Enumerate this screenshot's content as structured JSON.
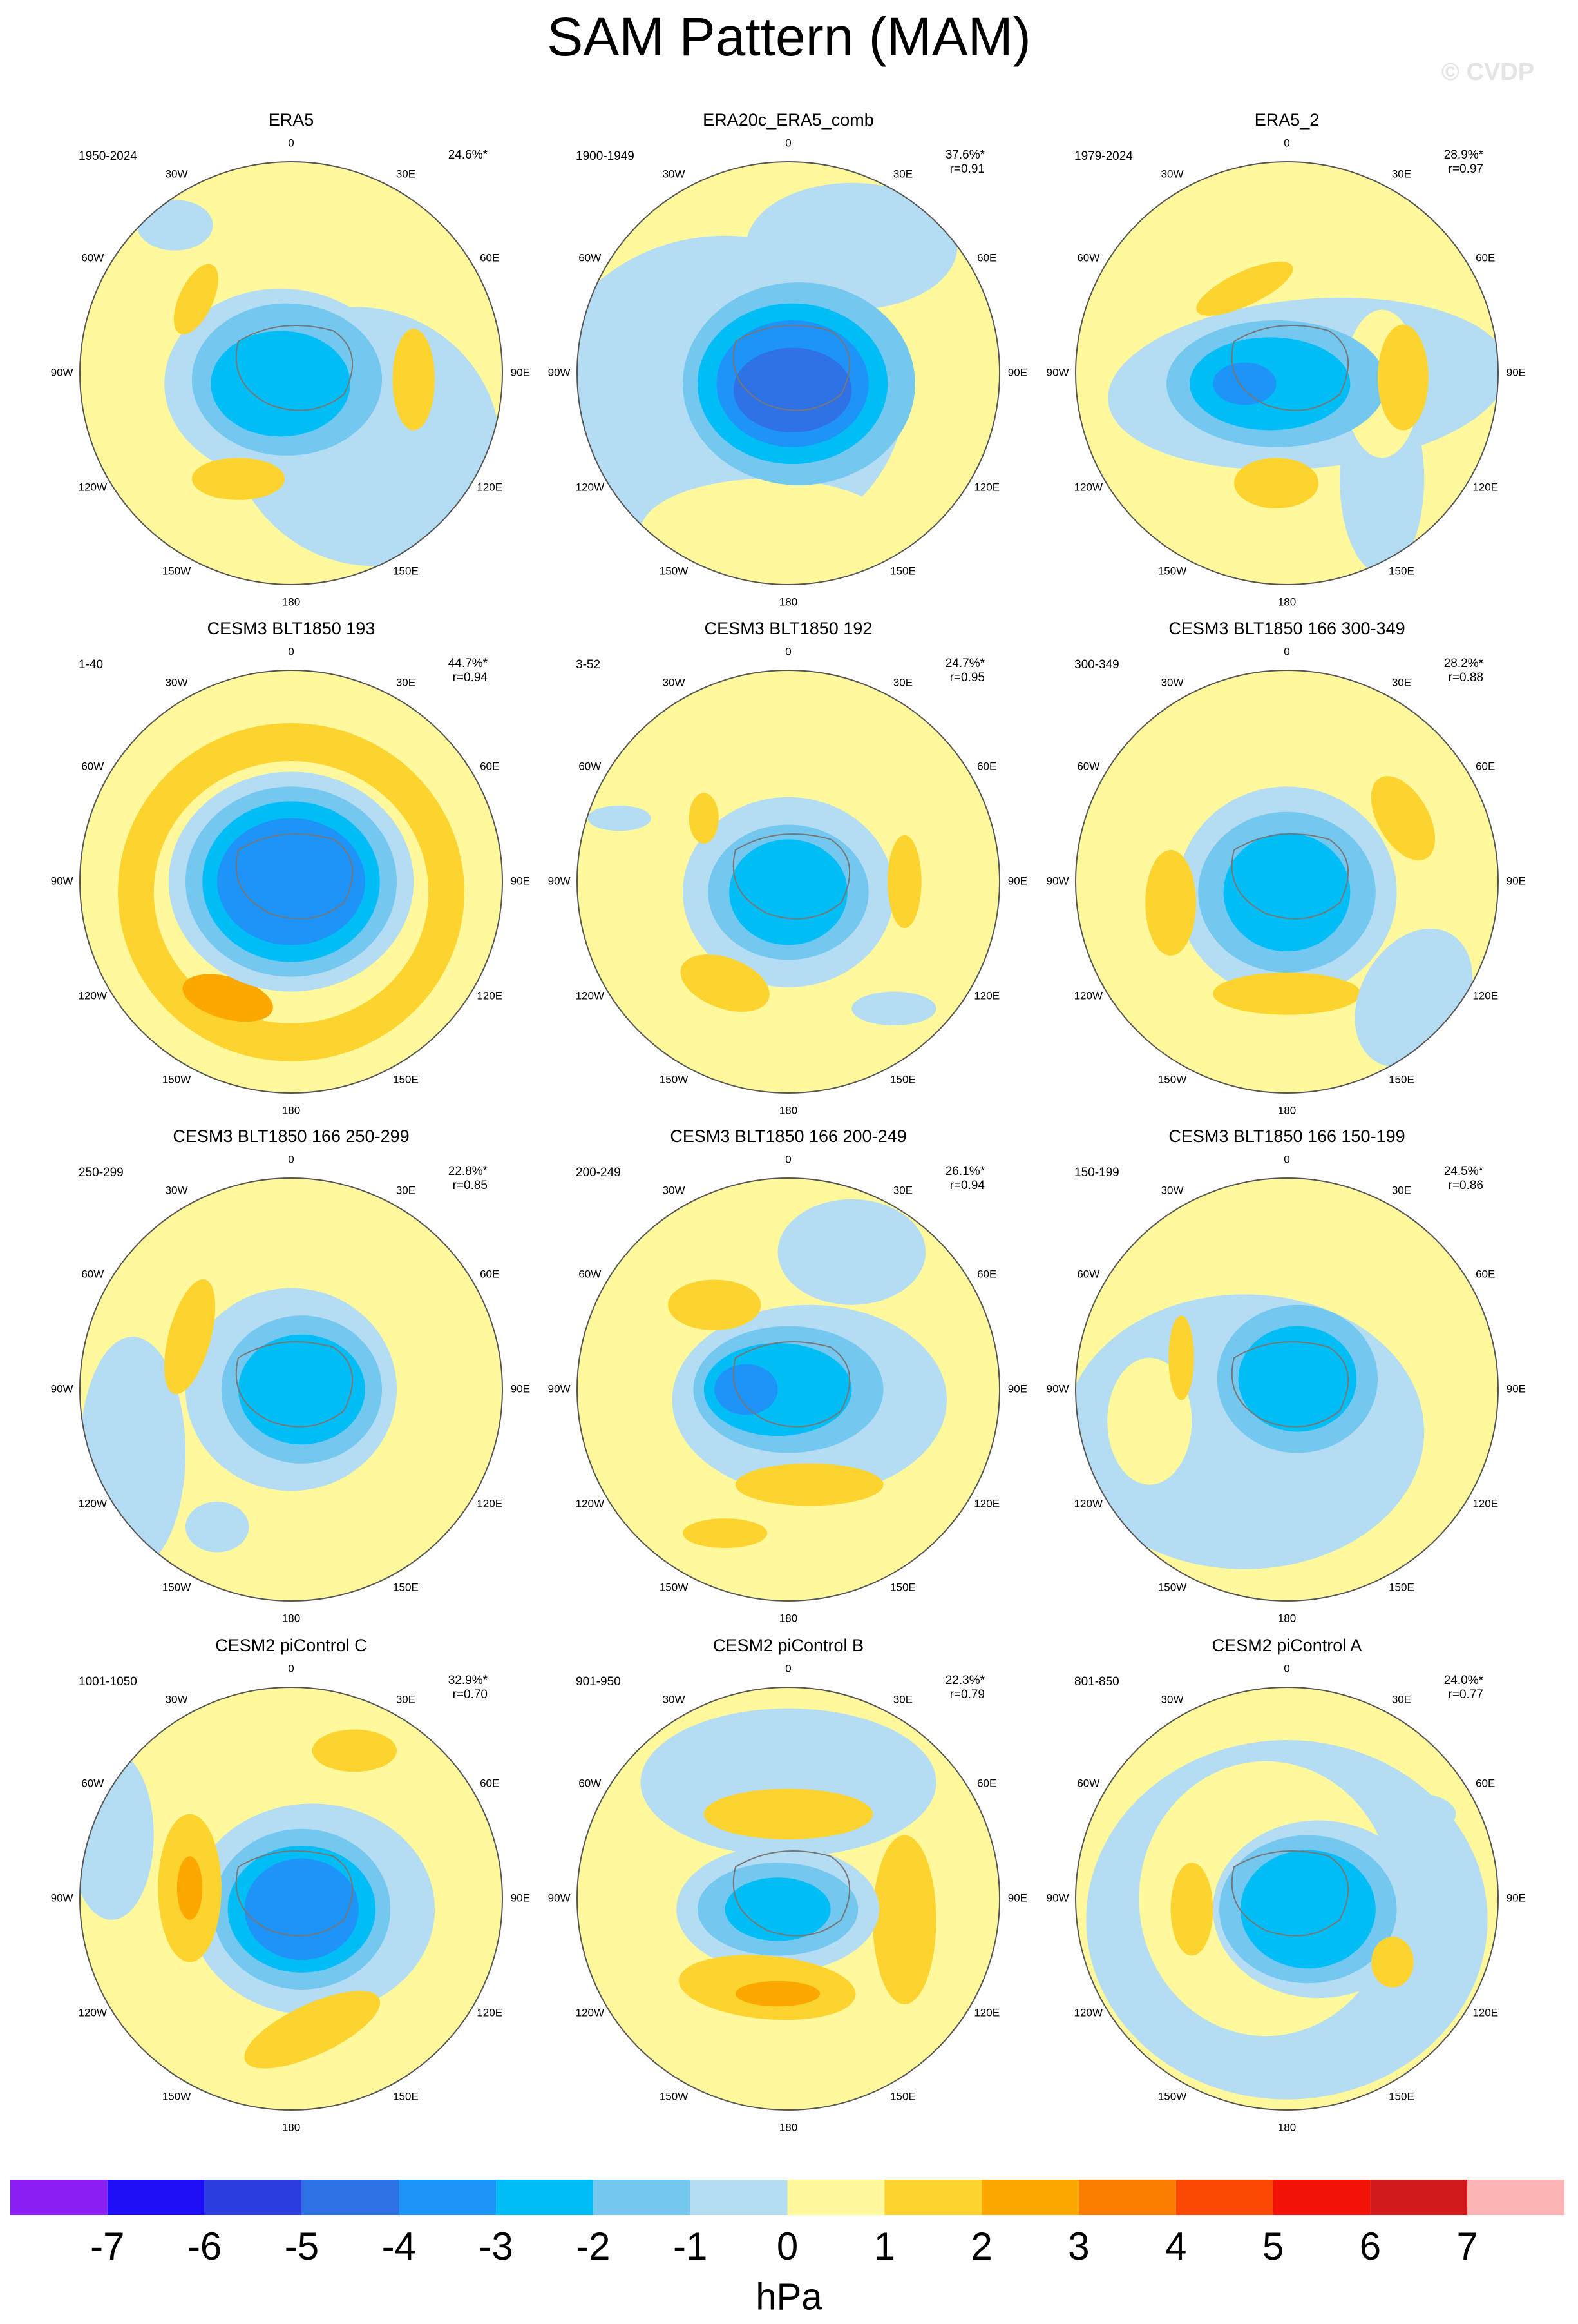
{
  "title": "SAM Pattern (MAM)",
  "watermark": "© CVDP",
  "longitude_labels": [
    "0",
    "30E",
    "60E",
    "90E",
    "120E",
    "150E",
    "180",
    "150W",
    "120W",
    "90W",
    "60W",
    "30W"
  ],
  "panels": [
    {
      "title": "ERA5",
      "period": "1950-2024",
      "variance": "24.6%*"
    },
    {
      "title": "ERA20c_ERA5_comb",
      "period": "1900-1949",
      "variance": "37.6%*",
      "correlation": "r=0.91"
    },
    {
      "title": "ERA5_2",
      "period": "1979-2024",
      "variance": "28.9%*",
      "correlation": "r=0.97"
    },
    {
      "title": "CESM3 BLT1850 193",
      "period": "1-40",
      "variance": "44.7%*",
      "correlation": "r=0.94"
    },
    {
      "title": "CESM3 BLT1850 192",
      "period": "3-52",
      "variance": "24.7%*",
      "correlation": "r=0.95"
    },
    {
      "title": "CESM3 BLT1850 166 300-349",
      "period": "300-349",
      "variance": "28.2%*",
      "correlation": "r=0.88"
    },
    {
      "title": "CESM3 BLT1850 166 250-299",
      "period": "250-299",
      "variance": "22.8%*",
      "correlation": "r=0.85"
    },
    {
      "title": "CESM3 BLT1850 166 200-249",
      "period": "200-249",
      "variance": "26.1%*",
      "correlation": "r=0.94"
    },
    {
      "title": "CESM3 BLT1850 166 150-199",
      "period": "150-199",
      "variance": "24.5%*",
      "correlation": "r=0.86"
    },
    {
      "title": "CESM2 piControl C",
      "period": "1001-1050",
      "variance": "32.9%*",
      "correlation": "r=0.70"
    },
    {
      "title": "CESM2 piControl B",
      "period": "901-950",
      "variance": "22.3%*",
      "correlation": "r=0.79"
    },
    {
      "title": "CESM2 piControl A",
      "period": "801-850",
      "variance": "24.0%*",
      "correlation": "r=0.77"
    }
  ],
  "colorbar": {
    "labels": [
      -7,
      -6,
      -5,
      -4,
      -3,
      -2,
      -1,
      0,
      1,
      2,
      3,
      4,
      5,
      6,
      7
    ],
    "colors": [
      "#8b1ff3",
      "#1d0ef6",
      "#2b3fe0",
      "#2f72e6",
      "#1e93f8",
      "#00bdf6",
      "#74c8f0",
      "#b4ddf3",
      "#fff89c",
      "#fdd42f",
      "#fca800",
      "#fb7d00",
      "#fb4a06",
      "#f21208",
      "#d01a1c",
      "#fcb4b4"
    ],
    "unit": "hPa"
  }
}
